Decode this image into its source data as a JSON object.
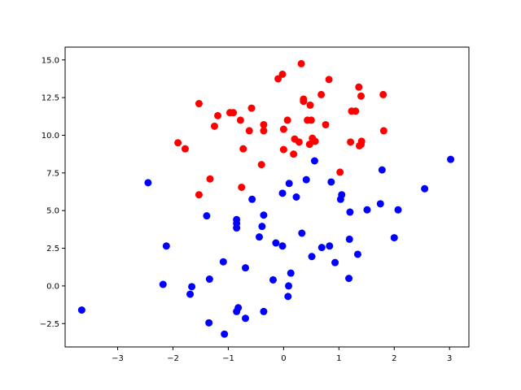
{
  "chart_data": {
    "type": "scatter",
    "title": "",
    "xlabel": "",
    "ylabel": "",
    "xlim": [
      -3.95,
      3.35
    ],
    "ylim": [
      -4.05,
      15.85
    ],
    "grid": false,
    "x_ticks": [
      -3,
      -2,
      -1,
      0,
      1,
      2,
      3
    ],
    "x_tick_labels": [
      "−3",
      "−2",
      "−1",
      "0",
      "1",
      "2",
      "3"
    ],
    "y_ticks": [
      -2.5,
      0.0,
      2.5,
      5.0,
      7.5,
      10.0,
      12.5,
      15.0
    ],
    "y_tick_labels": [
      "−2.5",
      "0.0",
      "2.5",
      "5.0",
      "7.5",
      "10.0",
      "12.5",
      "15.0"
    ],
    "series": [
      {
        "color": "#ff0000",
        "points": [
          [
            0.32,
            14.75
          ],
          [
            -0.02,
            14.05
          ],
          [
            -0.1,
            13.75
          ],
          [
            0.82,
            13.7
          ],
          [
            1.36,
            13.2
          ],
          [
            0.68,
            12.7
          ],
          [
            1.8,
            12.7
          ],
          [
            1.4,
            12.6
          ],
          [
            0.36,
            12.4
          ],
          [
            0.36,
            12.25
          ],
          [
            -1.53,
            12.1
          ],
          [
            0.48,
            12.0
          ],
          [
            -0.58,
            11.8
          ],
          [
            1.23,
            11.6
          ],
          [
            1.3,
            11.6
          ],
          [
            -0.97,
            11.5
          ],
          [
            -0.91,
            11.5
          ],
          [
            -1.19,
            11.3
          ],
          [
            0.43,
            11.0
          ],
          [
            0.5,
            11.0
          ],
          [
            0.07,
            11.0
          ],
          [
            -0.78,
            11.0
          ],
          [
            -0.36,
            10.7
          ],
          [
            0.76,
            10.7
          ],
          [
            -1.25,
            10.6
          ],
          [
            0.0,
            10.4
          ],
          [
            -0.62,
            10.3
          ],
          [
            -0.36,
            10.3
          ],
          [
            1.81,
            10.3
          ],
          [
            0.52,
            9.8
          ],
          [
            0.2,
            9.75
          ],
          [
            0.57,
            9.6
          ],
          [
            0.28,
            9.55
          ],
          [
            1.41,
            9.6
          ],
          [
            1.21,
            9.55
          ],
          [
            -1.91,
            9.5
          ],
          [
            1.4,
            9.4
          ],
          [
            0.47,
            9.4
          ],
          [
            1.37,
            9.3
          ],
          [
            -1.78,
            9.1
          ],
          [
            -0.73,
            9.1
          ],
          [
            0.0,
            9.05
          ],
          [
            0.18,
            8.75
          ],
          [
            -0.4,
            8.05
          ],
          [
            1.02,
            7.55
          ],
          [
            -1.33,
            7.1
          ],
          [
            -0.76,
            6.55
          ],
          [
            -1.53,
            6.05
          ]
        ]
      },
      {
        "color": "#0000ff",
        "points": [
          [
            3.02,
            8.4
          ],
          [
            0.56,
            8.3
          ],
          [
            1.78,
            7.7
          ],
          [
            0.41,
            7.05
          ],
          [
            0.86,
            6.9
          ],
          [
            -2.45,
            6.85
          ],
          [
            0.1,
            6.8
          ],
          [
            2.55,
            6.45
          ],
          [
            -0.02,
            6.15
          ],
          [
            1.05,
            6.05
          ],
          [
            0.23,
            5.9
          ],
          [
            1.03,
            5.75
          ],
          [
            -0.57,
            5.75
          ],
          [
            1.75,
            5.45
          ],
          [
            1.51,
            5.05
          ],
          [
            2.07,
            5.05
          ],
          [
            1.2,
            4.9
          ],
          [
            -1.39,
            4.65
          ],
          [
            -0.36,
            4.7
          ],
          [
            -0.85,
            4.4
          ],
          [
            -0.85,
            4.15
          ],
          [
            -0.39,
            3.95
          ],
          [
            -0.85,
            3.85
          ],
          [
            0.33,
            3.5
          ],
          [
            -0.44,
            3.25
          ],
          [
            2.0,
            3.2
          ],
          [
            1.19,
            3.1
          ],
          [
            -2.12,
            2.65
          ],
          [
            0.83,
            2.65
          ],
          [
            0.69,
            2.55
          ],
          [
            -0.14,
            2.85
          ],
          [
            -0.02,
            2.65
          ],
          [
            1.34,
            2.1
          ],
          [
            0.51,
            1.95
          ],
          [
            -1.09,
            1.6
          ],
          [
            0.93,
            1.55
          ],
          [
            -0.69,
            1.2
          ],
          [
            0.13,
            0.85
          ],
          [
            1.18,
            0.5
          ],
          [
            -1.34,
            0.45
          ],
          [
            -0.19,
            0.4
          ],
          [
            -2.18,
            0.1
          ],
          [
            0.09,
            0.0
          ],
          [
            -1.66,
            -0.05
          ],
          [
            -1.69,
            -0.55
          ],
          [
            0.08,
            -0.7
          ],
          [
            -3.65,
            -1.6
          ],
          [
            -0.82,
            -1.45
          ],
          [
            -0.85,
            -1.7
          ],
          [
            -0.36,
            -1.7
          ],
          [
            -0.69,
            -2.15
          ],
          [
            -1.35,
            -2.45
          ],
          [
            -1.07,
            -3.2
          ]
        ]
      }
    ]
  }
}
